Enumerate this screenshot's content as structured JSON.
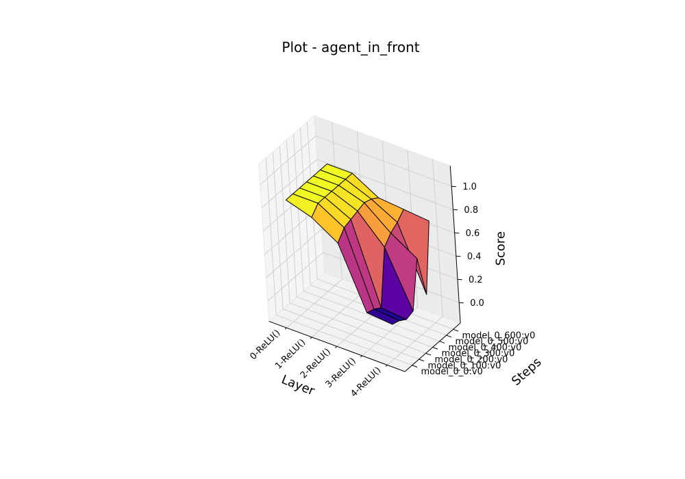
{
  "chart_data": {
    "type": "surface3d",
    "title": "Plot - agent_in_front",
    "xlabel": "Layer",
    "ylabel": "Steps",
    "zlabel": "Score",
    "x_categories": [
      "0-ReLU()",
      "1-ReLU()",
      "2-ReLU()",
      "3-ReLU()",
      "4-ReLU()"
    ],
    "y_categories": [
      "model_0_0:v0",
      "model_0_100:v0",
      "model_0_200:v0",
      "model_0_300:v0",
      "model_0_400:v0",
      "model_0_500:v0",
      "model_0_600:v0"
    ],
    "z_ticks": [
      "0.0",
      "0.2",
      "0.4",
      "0.6",
      "0.8",
      "1.0"
    ],
    "zlim": [
      0,
      1
    ],
    "colormap": "plasma",
    "grid": true,
    "values": [
      [
        0.87,
        0.87,
        0.87,
        0.87,
        0.87,
        0.87,
        0.87
      ],
      [
        0.8,
        0.87,
        0.87,
        0.87,
        0.87,
        0.87,
        0.87
      ],
      [
        0.66,
        0.74,
        0.76,
        0.78,
        0.8,
        0.78,
        0.74
      ],
      [
        0.14,
        0.12,
        0.08,
        0.55,
        0.62,
        0.66,
        0.72
      ],
      [
        0.12,
        0.1,
        0.06,
        0.08,
        0.48,
        0.12,
        0.7
      ]
    ]
  }
}
